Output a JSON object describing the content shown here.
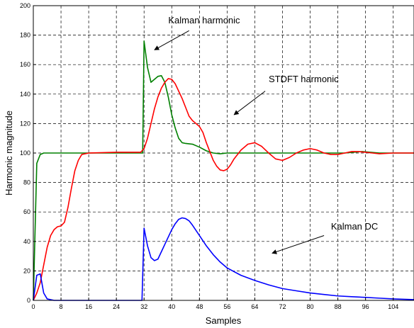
{
  "chart_data": {
    "type": "line",
    "title": "",
    "xlabel": "Samples",
    "ylabel": "Harmonic magnitude",
    "xlim": [
      0,
      110
    ],
    "ylim": [
      0,
      200
    ],
    "x_ticks": [
      0,
      8,
      16,
      24,
      32,
      40,
      48,
      56,
      64,
      72,
      80,
      88,
      96,
      104
    ],
    "y_ticks": [
      0,
      20,
      40,
      60,
      80,
      100,
      120,
      140,
      160,
      180,
      200
    ],
    "grid": true,
    "legend": "none",
    "series": [
      {
        "color": "#008000",
        "points": [
          [
            0,
            0
          ],
          [
            1,
            93
          ],
          [
            2,
            99
          ],
          [
            3,
            100
          ],
          [
            10,
            100
          ],
          [
            20,
            100
          ],
          [
            31.6,
            100
          ],
          [
            32,
            176
          ],
          [
            33,
            158
          ],
          [
            34,
            148
          ],
          [
            35,
            150
          ],
          [
            36,
            152
          ],
          [
            37,
            152.5
          ],
          [
            38,
            148
          ],
          [
            39,
            138
          ],
          [
            40,
            126
          ],
          [
            41,
            117
          ],
          [
            42,
            110
          ],
          [
            43,
            107
          ],
          [
            44,
            106.5
          ],
          [
            46,
            106
          ],
          [
            48,
            104
          ],
          [
            50,
            101.5
          ],
          [
            52,
            100
          ],
          [
            54,
            99.5
          ],
          [
            56,
            100
          ],
          [
            60,
            100
          ],
          [
            70,
            100
          ],
          [
            80,
            100
          ],
          [
            90,
            100
          ],
          [
            95,
            101
          ],
          [
            100,
            100
          ],
          [
            110,
            100
          ]
        ]
      },
      {
        "color": "#ff0000",
        "points": [
          [
            0,
            0
          ],
          [
            1,
            5
          ],
          [
            2,
            12
          ],
          [
            3,
            24
          ],
          [
            4,
            36
          ],
          [
            5,
            44
          ],
          [
            6,
            48
          ],
          [
            7,
            50
          ],
          [
            8,
            50.5
          ],
          [
            9,
            53
          ],
          [
            10,
            63
          ],
          [
            11,
            76
          ],
          [
            12,
            88
          ],
          [
            13,
            95
          ],
          [
            14,
            99
          ],
          [
            16,
            100
          ],
          [
            24,
            100.5
          ],
          [
            31,
            100.5
          ],
          [
            32,
            103
          ],
          [
            33,
            110
          ],
          [
            34,
            120
          ],
          [
            35,
            130
          ],
          [
            36,
            138
          ],
          [
            37,
            144
          ],
          [
            38,
            148
          ],
          [
            39,
            150.5
          ],
          [
            40,
            150
          ],
          [
            41,
            147
          ],
          [
            42,
            142
          ],
          [
            43,
            137
          ],
          [
            44,
            131
          ],
          [
            45,
            125
          ],
          [
            46,
            122
          ],
          [
            47,
            120
          ],
          [
            48,
            118
          ],
          [
            49,
            114
          ],
          [
            50,
            107
          ],
          [
            51,
            101
          ],
          [
            52,
            95
          ],
          [
            53,
            91
          ],
          [
            54,
            88.5
          ],
          [
            55,
            88
          ],
          [
            56,
            89
          ],
          [
            57,
            92
          ],
          [
            58,
            96
          ],
          [
            60,
            102
          ],
          [
            62,
            106
          ],
          [
            64,
            107
          ],
          [
            66,
            104.5
          ],
          [
            68,
            100
          ],
          [
            70,
            96
          ],
          [
            72,
            95
          ],
          [
            74,
            97
          ],
          [
            76,
            100
          ],
          [
            78,
            102
          ],
          [
            80,
            103
          ],
          [
            82,
            102
          ],
          [
            84,
            100
          ],
          [
            86,
            99
          ],
          [
            88,
            99
          ],
          [
            90,
            100
          ],
          [
            92,
            101
          ],
          [
            94,
            101
          ],
          [
            96,
            100.5
          ],
          [
            98,
            100
          ],
          [
            100,
            99.5
          ],
          [
            104,
            100
          ],
          [
            110,
            100
          ]
        ]
      },
      {
        "color": "#0000ff",
        "points": [
          [
            0,
            0
          ],
          [
            1,
            17
          ],
          [
            2,
            18
          ],
          [
            3,
            5
          ],
          [
            4,
            1
          ],
          [
            6,
            0
          ],
          [
            31.4,
            0
          ],
          [
            32,
            49
          ],
          [
            33,
            37
          ],
          [
            34,
            29
          ],
          [
            35,
            27
          ],
          [
            36,
            28
          ],
          [
            37,
            33
          ],
          [
            38,
            38
          ],
          [
            39,
            43
          ],
          [
            40,
            48
          ],
          [
            41,
            52
          ],
          [
            42,
            55
          ],
          [
            43,
            56
          ],
          [
            44,
            55.5
          ],
          [
            45,
            54
          ],
          [
            46,
            51
          ],
          [
            48,
            44
          ],
          [
            50,
            37
          ],
          [
            52,
            31
          ],
          [
            54,
            26
          ],
          [
            56,
            22
          ],
          [
            60,
            17
          ],
          [
            64,
            13.5
          ],
          [
            68,
            10.5
          ],
          [
            72,
            8
          ],
          [
            76,
            6.5
          ],
          [
            80,
            5
          ],
          [
            84,
            4
          ],
          [
            88,
            3
          ],
          [
            92,
            2.5
          ],
          [
            96,
            2
          ],
          [
            100,
            1.5
          ],
          [
            104,
            1
          ],
          [
            110,
            0.5
          ]
        ]
      }
    ],
    "annotations": [
      {
        "text": "Kalman harmonic",
        "text_at": [
          39,
          188
        ],
        "arrow_from": [
          45,
          183
        ],
        "arrow_to": [
          35,
          170
        ]
      },
      {
        "text": "STDFT harmonic",
        "text_at": [
          68,
          148
        ],
        "arrow_from": [
          67,
          142
        ],
        "arrow_to": [
          58,
          126
        ]
      },
      {
        "text": "Kalman DC",
        "text_at": [
          86,
          48
        ],
        "arrow_from": [
          84,
          44
        ],
        "arrow_to": [
          69,
          32
        ]
      }
    ]
  }
}
